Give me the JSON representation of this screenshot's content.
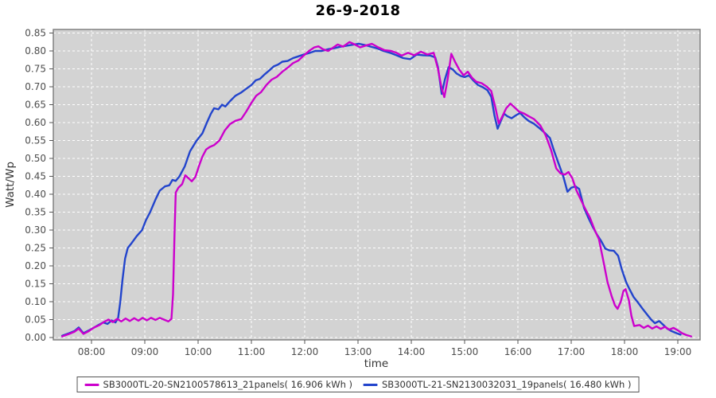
{
  "title": "26-9-2018",
  "chart_data": {
    "type": "line",
    "title": "26-9-2018",
    "xlabel": "time",
    "ylabel": "Watt/Wp",
    "ylim": [
      0,
      0.85
    ],
    "grid": "white dashed gridlines on gray plot background",
    "legend_position": "bottom-center",
    "colors": {
      "plot_background": "#d3d3d3",
      "grid": "#ffffff",
      "axis_border": "#7a7a7a",
      "tick_text": "#4d4d4d"
    },
    "y_tick_values": [
      0,
      0.05,
      0.1,
      0.15,
      0.2,
      0.25,
      0.3,
      0.35,
      0.4,
      0.45,
      0.5,
      0.55,
      0.6,
      0.65,
      0.7,
      0.75,
      0.8,
      0.85
    ],
    "y_tick_labels": [
      "0.00",
      "0.05",
      "0.10",
      "0.15",
      "0.20",
      "0.25",
      "0.30",
      "0.35",
      "0.40",
      "0.45",
      "0.50",
      "0.55",
      "0.60",
      "0.65",
      "0.70",
      "0.75",
      "0.80",
      "0.85"
    ],
    "x_tick_hours": [
      8,
      9,
      10,
      11,
      12,
      13,
      14,
      15,
      16,
      17,
      18,
      19
    ],
    "x_tick_labels": [
      "08:00",
      "09:00",
      "10:00",
      "11:00",
      "12:00",
      "13:00",
      "14:00",
      "15:00",
      "16:00",
      "17:00",
      "18:00",
      "19:00"
    ],
    "series": [
      {
        "name": "SB3000TL-21-SN2130032031_19panels( 16.480 kWh )",
        "color": "#2244cc",
        "energy_kwh": "16.480",
        "points": [
          [
            7.45,
            0.005
          ],
          [
            7.58,
            0.012
          ],
          [
            7.68,
            0.018
          ],
          [
            7.76,
            0.028
          ],
          [
            7.85,
            0.012
          ],
          [
            7.95,
            0.02
          ],
          [
            8.05,
            0.028
          ],
          [
            8.13,
            0.035
          ],
          [
            8.22,
            0.042
          ],
          [
            8.3,
            0.038
          ],
          [
            8.38,
            0.048
          ],
          [
            8.45,
            0.042
          ],
          [
            8.5,
            0.055
          ],
          [
            8.54,
            0.1
          ],
          [
            8.58,
            0.16
          ],
          [
            8.63,
            0.22
          ],
          [
            8.68,
            0.25
          ],
          [
            8.75,
            0.263
          ],
          [
            8.85,
            0.283
          ],
          [
            8.95,
            0.3
          ],
          [
            9.02,
            0.327
          ],
          [
            9.1,
            0.35
          ],
          [
            9.2,
            0.385
          ],
          [
            9.28,
            0.41
          ],
          [
            9.38,
            0.422
          ],
          [
            9.46,
            0.425
          ],
          [
            9.52,
            0.44
          ],
          [
            9.58,
            0.437
          ],
          [
            9.65,
            0.45
          ],
          [
            9.75,
            0.478
          ],
          [
            9.85,
            0.52
          ],
          [
            9.97,
            0.549
          ],
          [
            10.08,
            0.57
          ],
          [
            10.16,
            0.598
          ],
          [
            10.24,
            0.625
          ],
          [
            10.3,
            0.64
          ],
          [
            10.38,
            0.637
          ],
          [
            10.45,
            0.65
          ],
          [
            10.51,
            0.645
          ],
          [
            10.6,
            0.66
          ],
          [
            10.7,
            0.675
          ],
          [
            10.8,
            0.683
          ],
          [
            10.9,
            0.694
          ],
          [
            11.0,
            0.705
          ],
          [
            11.08,
            0.718
          ],
          [
            11.16,
            0.722
          ],
          [
            11.25,
            0.735
          ],
          [
            11.33,
            0.745
          ],
          [
            11.42,
            0.757
          ],
          [
            11.5,
            0.762
          ],
          [
            11.58,
            0.77
          ],
          [
            11.68,
            0.772
          ],
          [
            11.78,
            0.78
          ],
          [
            11.88,
            0.785
          ],
          [
            11.98,
            0.79
          ],
          [
            12.1,
            0.795
          ],
          [
            12.2,
            0.8
          ],
          [
            12.32,
            0.8
          ],
          [
            12.44,
            0.805
          ],
          [
            12.56,
            0.808
          ],
          [
            12.68,
            0.812
          ],
          [
            12.8,
            0.815
          ],
          [
            12.92,
            0.818
          ],
          [
            13.02,
            0.82
          ],
          [
            13.12,
            0.817
          ],
          [
            13.24,
            0.812
          ],
          [
            13.36,
            0.807
          ],
          [
            13.48,
            0.8
          ],
          [
            13.6,
            0.795
          ],
          [
            13.72,
            0.788
          ],
          [
            13.85,
            0.78
          ],
          [
            13.98,
            0.777
          ],
          [
            14.1,
            0.79
          ],
          [
            14.22,
            0.788
          ],
          [
            14.35,
            0.787
          ],
          [
            14.45,
            0.782
          ],
          [
            14.5,
            0.755
          ],
          [
            14.57,
            0.68
          ],
          [
            14.63,
            0.72
          ],
          [
            14.7,
            0.755
          ],
          [
            14.78,
            0.748
          ],
          [
            14.85,
            0.737
          ],
          [
            14.93,
            0.73
          ],
          [
            15.0,
            0.727
          ],
          [
            15.08,
            0.732
          ],
          [
            15.16,
            0.718
          ],
          [
            15.25,
            0.705
          ],
          [
            15.35,
            0.698
          ],
          [
            15.43,
            0.69
          ],
          [
            15.5,
            0.672
          ],
          [
            15.56,
            0.62
          ],
          [
            15.62,
            0.583
          ],
          [
            15.68,
            0.605
          ],
          [
            15.74,
            0.625
          ],
          [
            15.8,
            0.618
          ],
          [
            15.88,
            0.612
          ],
          [
            15.96,
            0.62
          ],
          [
            16.04,
            0.627
          ],
          [
            16.12,
            0.615
          ],
          [
            16.2,
            0.605
          ],
          [
            16.3,
            0.597
          ],
          [
            16.4,
            0.585
          ],
          [
            16.5,
            0.572
          ],
          [
            16.6,
            0.557
          ],
          [
            16.68,
            0.52
          ],
          [
            16.76,
            0.487
          ],
          [
            16.85,
            0.45
          ],
          [
            16.93,
            0.407
          ],
          [
            17.0,
            0.418
          ],
          [
            17.08,
            0.422
          ],
          [
            17.15,
            0.415
          ],
          [
            17.24,
            0.362
          ],
          [
            17.32,
            0.335
          ],
          [
            17.4,
            0.31
          ],
          [
            17.48,
            0.288
          ],
          [
            17.56,
            0.27
          ],
          [
            17.64,
            0.248
          ],
          [
            17.72,
            0.243
          ],
          [
            17.8,
            0.242
          ],
          [
            17.88,
            0.228
          ],
          [
            17.95,
            0.19
          ],
          [
            18.03,
            0.155
          ],
          [
            18.1,
            0.133
          ],
          [
            18.17,
            0.113
          ],
          [
            18.25,
            0.098
          ],
          [
            18.33,
            0.082
          ],
          [
            18.42,
            0.065
          ],
          [
            18.5,
            0.05
          ],
          [
            18.57,
            0.04
          ],
          [
            18.65,
            0.046
          ],
          [
            18.73,
            0.035
          ],
          [
            18.8,
            0.025
          ],
          [
            18.88,
            0.018
          ],
          [
            18.96,
            0.013
          ],
          [
            19.05,
            0.008
          ]
        ]
      },
      {
        "name": "SB3000TL-20-SN2100578613_21panels( 16.906 kWh )",
        "color": "#cc00cc",
        "energy_kwh": "16.906",
        "points": [
          [
            7.45,
            0.003
          ],
          [
            7.58,
            0.01
          ],
          [
            7.68,
            0.016
          ],
          [
            7.76,
            0.025
          ],
          [
            7.85,
            0.01
          ],
          [
            7.95,
            0.018
          ],
          [
            8.05,
            0.028
          ],
          [
            8.14,
            0.034
          ],
          [
            8.23,
            0.043
          ],
          [
            8.32,
            0.05
          ],
          [
            8.4,
            0.043
          ],
          [
            8.48,
            0.052
          ],
          [
            8.56,
            0.045
          ],
          [
            8.64,
            0.053
          ],
          [
            8.72,
            0.046
          ],
          [
            8.8,
            0.054
          ],
          [
            8.88,
            0.047
          ],
          [
            8.96,
            0.055
          ],
          [
            9.04,
            0.048
          ],
          [
            9.12,
            0.055
          ],
          [
            9.2,
            0.049
          ],
          [
            9.28,
            0.055
          ],
          [
            9.36,
            0.05
          ],
          [
            9.44,
            0.045
          ],
          [
            9.5,
            0.052
          ],
          [
            9.53,
            0.12
          ],
          [
            9.56,
            0.3
          ],
          [
            9.58,
            0.405
          ],
          [
            9.63,
            0.418
          ],
          [
            9.7,
            0.428
          ],
          [
            9.76,
            0.453
          ],
          [
            9.82,
            0.445
          ],
          [
            9.88,
            0.436
          ],
          [
            9.95,
            0.448
          ],
          [
            10.02,
            0.48
          ],
          [
            10.08,
            0.505
          ],
          [
            10.15,
            0.525
          ],
          [
            10.22,
            0.532
          ],
          [
            10.3,
            0.537
          ],
          [
            10.4,
            0.55
          ],
          [
            10.5,
            0.578
          ],
          [
            10.6,
            0.596
          ],
          [
            10.7,
            0.605
          ],
          [
            10.81,
            0.61
          ],
          [
            10.9,
            0.63
          ],
          [
            11.0,
            0.655
          ],
          [
            11.09,
            0.675
          ],
          [
            11.18,
            0.685
          ],
          [
            11.28,
            0.705
          ],
          [
            11.38,
            0.72
          ],
          [
            11.48,
            0.728
          ],
          [
            11.58,
            0.742
          ],
          [
            11.68,
            0.753
          ],
          [
            11.78,
            0.766
          ],
          [
            11.88,
            0.773
          ],
          [
            11.98,
            0.787
          ],
          [
            12.08,
            0.8
          ],
          [
            12.18,
            0.81
          ],
          [
            12.26,
            0.813
          ],
          [
            12.34,
            0.805
          ],
          [
            12.44,
            0.8
          ],
          [
            12.54,
            0.81
          ],
          [
            12.62,
            0.818
          ],
          [
            12.72,
            0.812
          ],
          [
            12.84,
            0.825
          ],
          [
            12.94,
            0.818
          ],
          [
            13.04,
            0.81
          ],
          [
            13.14,
            0.815
          ],
          [
            13.26,
            0.82
          ],
          [
            13.38,
            0.81
          ],
          [
            13.5,
            0.802
          ],
          [
            13.62,
            0.8
          ],
          [
            13.72,
            0.795
          ],
          [
            13.82,
            0.787
          ],
          [
            13.94,
            0.795
          ],
          [
            14.05,
            0.788
          ],
          [
            14.18,
            0.798
          ],
          [
            14.3,
            0.79
          ],
          [
            14.42,
            0.795
          ],
          [
            14.5,
            0.75
          ],
          [
            14.57,
            0.695
          ],
          [
            14.62,
            0.671
          ],
          [
            14.68,
            0.72
          ],
          [
            14.75,
            0.792
          ],
          [
            14.82,
            0.77
          ],
          [
            14.9,
            0.748
          ],
          [
            14.98,
            0.732
          ],
          [
            15.06,
            0.742
          ],
          [
            15.14,
            0.725
          ],
          [
            15.22,
            0.714
          ],
          [
            15.32,
            0.71
          ],
          [
            15.42,
            0.7
          ],
          [
            15.5,
            0.688
          ],
          [
            15.58,
            0.64
          ],
          [
            15.64,
            0.598
          ],
          [
            15.7,
            0.615
          ],
          [
            15.78,
            0.64
          ],
          [
            15.86,
            0.653
          ],
          [
            15.94,
            0.642
          ],
          [
            16.02,
            0.631
          ],
          [
            16.12,
            0.625
          ],
          [
            16.2,
            0.618
          ],
          [
            16.3,
            0.61
          ],
          [
            16.42,
            0.592
          ],
          [
            16.52,
            0.565
          ],
          [
            16.62,
            0.525
          ],
          [
            16.72,
            0.472
          ],
          [
            16.8,
            0.458
          ],
          [
            16.88,
            0.455
          ],
          [
            16.95,
            0.462
          ],
          [
            17.02,
            0.445
          ],
          [
            17.1,
            0.41
          ],
          [
            17.18,
            0.385
          ],
          [
            17.26,
            0.36
          ],
          [
            17.35,
            0.335
          ],
          [
            17.44,
            0.3
          ],
          [
            17.52,
            0.275
          ],
          [
            17.6,
            0.216
          ],
          [
            17.68,
            0.155
          ],
          [
            17.76,
            0.115
          ],
          [
            17.82,
            0.09
          ],
          [
            17.87,
            0.08
          ],
          [
            17.93,
            0.1
          ],
          [
            17.98,
            0.13
          ],
          [
            18.02,
            0.135
          ],
          [
            18.08,
            0.105
          ],
          [
            18.13,
            0.06
          ],
          [
            18.18,
            0.032
          ],
          [
            18.28,
            0.035
          ],
          [
            18.36,
            0.027
          ],
          [
            18.44,
            0.033
          ],
          [
            18.52,
            0.025
          ],
          [
            18.6,
            0.031
          ],
          [
            18.68,
            0.024
          ],
          [
            18.76,
            0.03
          ],
          [
            18.84,
            0.022
          ],
          [
            18.92,
            0.027
          ],
          [
            19.0,
            0.02
          ],
          [
            19.08,
            0.012
          ],
          [
            19.16,
            0.007
          ],
          [
            19.25,
            0.003
          ]
        ]
      }
    ],
    "legend_order": [
      1,
      0
    ]
  }
}
